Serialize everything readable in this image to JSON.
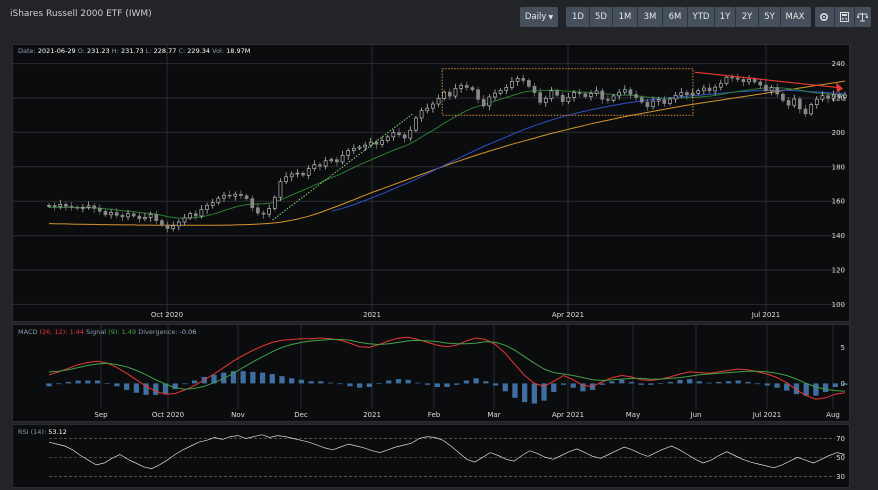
{
  "title": "iShares Russell 2000 ETF (IWM)",
  "toolbar": {
    "interval": "Daily",
    "ranges": [
      "1D",
      "5D",
      "1M",
      "3M",
      "6M",
      "YTD",
      "1Y",
      "2Y",
      "5Y",
      "MAX"
    ],
    "icons": [
      "settings-icon",
      "calculator-icon",
      "balance-icon"
    ]
  },
  "info": {
    "date_label": "Date:",
    "date": "2021-06-29",
    "o_label": "O:",
    "o": "231.23",
    "h_label": "H:",
    "h": "231.73",
    "l_label": "L:",
    "l": "228.77",
    "c_label": "C:",
    "c": "229.34",
    "v_label": "Vol:",
    "v": "18.97M"
  },
  "macd_legend": {
    "name": "MACD",
    "params": "(26, 12):",
    "macd": "1.44",
    "signal_label": "Signal",
    "signal_params": "(9):",
    "signal": "1.49",
    "div_label": "Divergence:",
    "div": "-0.06"
  },
  "rsi_legend": {
    "name": "RSI",
    "params": "(14):",
    "value": "53.12"
  },
  "colors": {
    "up": "#cccccc",
    "down": "#888888",
    "sma20": "#2e7d32",
    "sma50": "#2f50c8",
    "sma200": "#d4952a",
    "macd": "#e53935",
    "signal": "#43a047",
    "hist": "#3f6fa0",
    "rsi": "#dddddd",
    "annot_box": "#e08a2a",
    "annot_arrow": "#e53935",
    "annot_trend": "#7ee06a"
  },
  "chart_data": [
    {
      "type": "candlestick",
      "title": "iShares Russell 2000 ETF (IWM)",
      "ylim": [
        95,
        245
      ],
      "y_ticks": [
        100,
        120,
        140,
        160,
        180,
        200,
        220,
        240
      ],
      "x_ticks": [
        "Oct 2020",
        "2021",
        "Apr 2021",
        "Jul 2021"
      ],
      "grid": true,
      "close": [
        157.5,
        156.8,
        158.2,
        157.1,
        156.5,
        155.9,
        156.4,
        157.3,
        155.8,
        154.2,
        152.1,
        153.4,
        151.8,
        150.9,
        152.7,
        151.4,
        149.8,
        150.6,
        152.3,
        148.7,
        146.2,
        144.1,
        145.6,
        147.9,
        150.3,
        152.8,
        151.4,
        155.2,
        157.6,
        159.1,
        161.8,
        163.5,
        162.9,
        164.1,
        163.2,
        161.5,
        156.2,
        153.1,
        152.4,
        155.8,
        162.3,
        171.5,
        174.2,
        175.8,
        176.3,
        175.1,
        178.9,
        181.2,
        180.4,
        183.5,
        184.1,
        182.8,
        186.7,
        189.4,
        190.8,
        191.5,
        192.6,
        194.3,
        193.1,
        195.2,
        197.4,
        199.8,
        198.6,
        196.7,
        201.3,
        208.4,
        212.6,
        214.1,
        216.5,
        219.8,
        223.4,
        221.1,
        225.6,
        227.3,
        226.1,
        224.8,
        219.2,
        215.4,
        220.6,
        222.8,
        224.5,
        226.1,
        229.7,
        231.4,
        230.2,
        226.8,
        223.1,
        217.4,
        219.8,
        224.2,
        221.6,
        217.9,
        220.4,
        223.1,
        222.5,
        220.8,
        222.6,
        224.1,
        219.3,
        218.6,
        221.2,
        223.4,
        224.8,
        222.1,
        220.3,
        217.6,
        214.9,
        218.2,
        219.1,
        216.8,
        219.4,
        221.6,
        223.2,
        221.8,
        222.7,
        224.3,
        225.8,
        224.1,
        226.3,
        228.4,
        232.1,
        231.6,
        230.8,
        229.4,
        230.9,
        229.3,
        227.5,
        224.2,
        226.1,
        222.3,
        218.6,
        215.8,
        219.4,
        213.6,
        210.8,
        216.1,
        219.3,
        221.4,
        219.8,
        222.1,
        220.4,
        221.7
      ],
      "ma20": [
        156.5,
        156.4,
        156.4,
        156.5,
        156.4,
        156.3,
        156.2,
        156.2,
        156.1,
        155.9,
        155.6,
        155.3,
        154.9,
        154.4,
        154.1,
        153.9,
        153.5,
        153.1,
        152.9,
        152.4,
        151.8,
        151.0,
        150.5,
        150.2,
        150.1,
        150.3,
        150.5,
        151.0,
        151.6,
        152.4,
        153.4,
        154.6,
        155.6,
        156.6,
        157.4,
        158.0,
        158.3,
        158.4,
        158.5,
        158.8,
        159.6,
        160.8,
        162.2,
        163.6,
        165.0,
        166.3,
        167.8,
        169.3,
        170.7,
        172.2,
        173.6,
        174.9,
        176.4,
        178.0,
        179.6,
        181.1,
        182.6,
        184.0,
        185.4,
        186.8,
        188.2,
        189.6,
        190.9,
        192.0,
        193.5,
        195.3,
        197.4,
        199.3,
        201.2,
        203.2,
        205.4,
        207.2,
        209.1,
        211.0,
        212.7,
        214.1,
        215.2,
        216.0,
        217.1,
        218.2,
        219.3,
        220.3,
        221.4,
        222.4,
        223.3,
        223.9,
        224.2,
        224.2,
        224.4,
        224.6,
        224.5,
        224.1,
        223.9,
        223.7,
        223.5,
        223.3,
        223.1,
        222.9,
        222.6,
        222.3,
        222.0,
        221.8,
        221.7,
        221.5,
        221.3,
        220.9,
        220.5,
        220.3,
        220.1,
        219.9,
        219.8,
        219.9,
        220.1,
        220.2,
        220.3,
        220.5,
        220.8,
        221.1,
        221.5,
        222.0,
        222.7,
        223.3,
        223.8,
        224.2,
        224.7,
        225.2,
        225.6,
        225.8,
        226.0,
        226.0,
        225.8,
        225.4,
        225.1,
        224.6,
        223.9,
        223.3,
        222.9,
        222.6,
        222.3,
        222.1,
        221.9,
        221.7
      ],
      "ma50": [
        null,
        null,
        null,
        null,
        null,
        null,
        null,
        null,
        null,
        null,
        null,
        null,
        null,
        null,
        null,
        null,
        null,
        null,
        null,
        null,
        null,
        null,
        null,
        null,
        null,
        null,
        null,
        null,
        null,
        null,
        null,
        null,
        null,
        null,
        null,
        null,
        null,
        null,
        null,
        null,
        null,
        null,
        null,
        null,
        null,
        null,
        null,
        null,
        null,
        null,
        154.2,
        155.0,
        155.9,
        156.9,
        158.0,
        159.2,
        160.4,
        161.7,
        163.0,
        164.3,
        165.7,
        167.1,
        168.5,
        169.9,
        171.3,
        172.8,
        174.4,
        176.0,
        177.6,
        179.2,
        180.8,
        182.4,
        184.0,
        185.6,
        187.2,
        188.8,
        190.3,
        191.8,
        193.2,
        194.6,
        196.0,
        197.4,
        198.8,
        200.2,
        201.5,
        202.7,
        203.9,
        205.0,
        206.1,
        207.2,
        208.2,
        209.1,
        210.0,
        210.8,
        211.6,
        212.4,
        213.1,
        213.8,
        214.5,
        215.1,
        215.7,
        216.3,
        216.9,
        217.4,
        217.9,
        218.3,
        218.7,
        219.1,
        219.5,
        219.8,
        220.1,
        220.4,
        220.7,
        221.0,
        221.3,
        221.6,
        221.9,
        222.2,
        222.5,
        222.8,
        223.1,
        223.4,
        223.6,
        223.8,
        224.0,
        224.2,
        224.3,
        224.4,
        224.5,
        224.5,
        224.5,
        224.4,
        224.3,
        224.1,
        223.9,
        223.7,
        223.5,
        223.3,
        223.1,
        222.9,
        222.7,
        222.5
      ],
      "ma200": [
        147.0,
        146.9,
        146.8,
        146.8,
        146.7,
        146.6,
        146.6,
        146.5,
        146.5,
        146.4,
        146.4,
        146.3,
        146.3,
        146.2,
        146.2,
        146.2,
        146.1,
        146.1,
        146.1,
        146.0,
        146.0,
        146.0,
        146.0,
        146.0,
        146.0,
        146.0,
        146.0,
        146.0,
        146.0,
        146.0,
        146.0,
        146.1,
        146.1,
        146.2,
        146.3,
        146.4,
        146.5,
        146.7,
        146.9,
        147.1,
        147.4,
        147.8,
        148.3,
        148.9,
        149.6,
        150.4,
        151.3,
        152.3,
        153.4,
        154.6,
        155.8,
        157.0,
        158.3,
        159.6,
        160.9,
        162.2,
        163.5,
        164.8,
        166.0,
        167.2,
        168.4,
        169.6,
        170.8,
        172.0,
        173.2,
        174.4,
        175.6,
        176.8,
        178.0,
        179.2,
        180.4,
        181.6,
        182.7,
        183.8,
        184.9,
        186.0,
        187.1,
        188.1,
        189.1,
        190.1,
        191.1,
        192.1,
        193.1,
        194.0,
        194.9,
        195.8,
        196.7,
        197.6,
        198.5,
        199.4,
        200.2,
        201.0,
        201.8,
        202.6,
        203.4,
        204.2,
        205.0,
        205.7,
        206.4,
        207.1,
        207.8,
        208.5,
        209.2,
        209.8,
        210.4,
        211.0,
        211.6,
        212.2,
        212.8,
        213.4,
        214.0,
        214.6,
        215.2,
        215.8,
        216.3,
        216.8,
        217.3,
        217.8,
        218.3,
        218.8,
        219.3,
        219.8,
        220.3,
        220.8,
        221.3,
        221.8,
        222.3,
        222.8,
        223.3,
        223.8,
        224.3,
        224.8,
        225.3,
        225.8,
        226.3,
        226.8,
        227.3,
        227.8,
        228.3,
        228.8,
        229.3,
        229.8
      ]
    },
    {
      "type": "macd",
      "x_ticks": [
        "Sep",
        "Oct 2020",
        "Nov",
        "Dec",
        "2021",
        "Feb",
        "Mar",
        "Apr 2021",
        "May",
        "Jun",
        "Jul 2021",
        "Aug"
      ],
      "ylim": [
        -3,
        7
      ],
      "y_ticks": [
        0,
        5
      ],
      "macd": [
        1.2,
        1.6,
        2.1,
        2.6,
        2.9,
        3.1,
        2.8,
        2.2,
        1.4,
        0.5,
        -0.4,
        -1.1,
        -1.5,
        -1.4,
        -0.9,
        -0.3,
        0.5,
        1.3,
        2.2,
        3.1,
        3.9,
        4.6,
        5.2,
        5.7,
        6.0,
        6.1,
        6.2,
        6.2,
        6.3,
        6.2,
        6.0,
        5.6,
        5.1,
        5.0,
        5.4,
        5.9,
        6.3,
        6.4,
        6.1,
        5.7,
        5.3,
        5.1,
        5.3,
        5.9,
        6.3,
        6.1,
        5.4,
        4.2,
        2.6,
        1.1,
        0.0,
        -0.4,
        0.3,
        1.1,
        0.5,
        -0.3,
        -0.4,
        0.2,
        0.8,
        1.1,
        0.9,
        0.5,
        0.4,
        0.6,
        0.9,
        1.3,
        1.6,
        1.5,
        1.4,
        1.6,
        1.8,
        2.0,
        1.9,
        1.6,
        1.3,
        0.8,
        0.1,
        -0.9,
        -1.7,
        -2.2,
        -2.0,
        -1.5,
        -1.3
      ],
      "signal": [
        1.6,
        1.7,
        1.9,
        2.2,
        2.5,
        2.7,
        2.8,
        2.6,
        2.3,
        1.8,
        1.2,
        0.5,
        -0.1,
        -0.6,
        -0.8,
        -0.7,
        -0.4,
        0.1,
        0.7,
        1.4,
        2.2,
        3.0,
        3.7,
        4.4,
        5.0,
        5.4,
        5.7,
        5.9,
        6.0,
        6.1,
        6.1,
        6.0,
        5.7,
        5.5,
        5.4,
        5.5,
        5.7,
        5.9,
        6.0,
        5.9,
        5.8,
        5.6,
        5.5,
        5.5,
        5.6,
        5.8,
        5.7,
        5.3,
        4.6,
        3.7,
        2.8,
        2.0,
        1.5,
        1.3,
        1.1,
        0.8,
        0.5,
        0.4,
        0.5,
        0.6,
        0.7,
        0.7,
        0.6,
        0.6,
        0.7,
        0.8,
        1.0,
        1.2,
        1.3,
        1.4,
        1.5,
        1.6,
        1.7,
        1.7,
        1.6,
        1.4,
        1.1,
        0.6,
        0.0,
        -0.5,
        -0.8,
        -1.0,
        -1.1
      ]
    },
    {
      "type": "line",
      "title": "RSI (14)",
      "ylim": [
        25,
        80
      ],
      "y_ticks": [
        30,
        50,
        70
      ],
      "values": [
        66,
        64,
        62,
        58,
        52,
        47,
        42,
        44,
        49,
        53,
        48,
        44,
        40,
        38,
        42,
        47,
        53,
        58,
        62,
        66,
        68,
        71,
        69,
        72,
        73,
        70,
        72,
        74,
        71,
        73,
        72,
        70,
        68,
        66,
        63,
        60,
        58,
        61,
        64,
        62,
        60,
        57,
        55,
        58,
        61,
        63,
        65,
        70,
        72,
        71,
        68,
        62,
        55,
        48,
        45,
        50,
        55,
        52,
        48,
        46,
        52,
        57,
        54,
        50,
        48,
        52,
        56,
        59,
        55,
        51,
        49,
        53,
        57,
        61,
        58,
        54,
        51,
        55,
        59,
        62,
        58,
        53,
        48,
        44,
        47,
        52,
        56,
        52,
        48,
        45,
        43,
        41,
        39,
        42,
        46,
        50,
        47,
        44,
        48,
        52,
        55,
        53
      ]
    }
  ]
}
